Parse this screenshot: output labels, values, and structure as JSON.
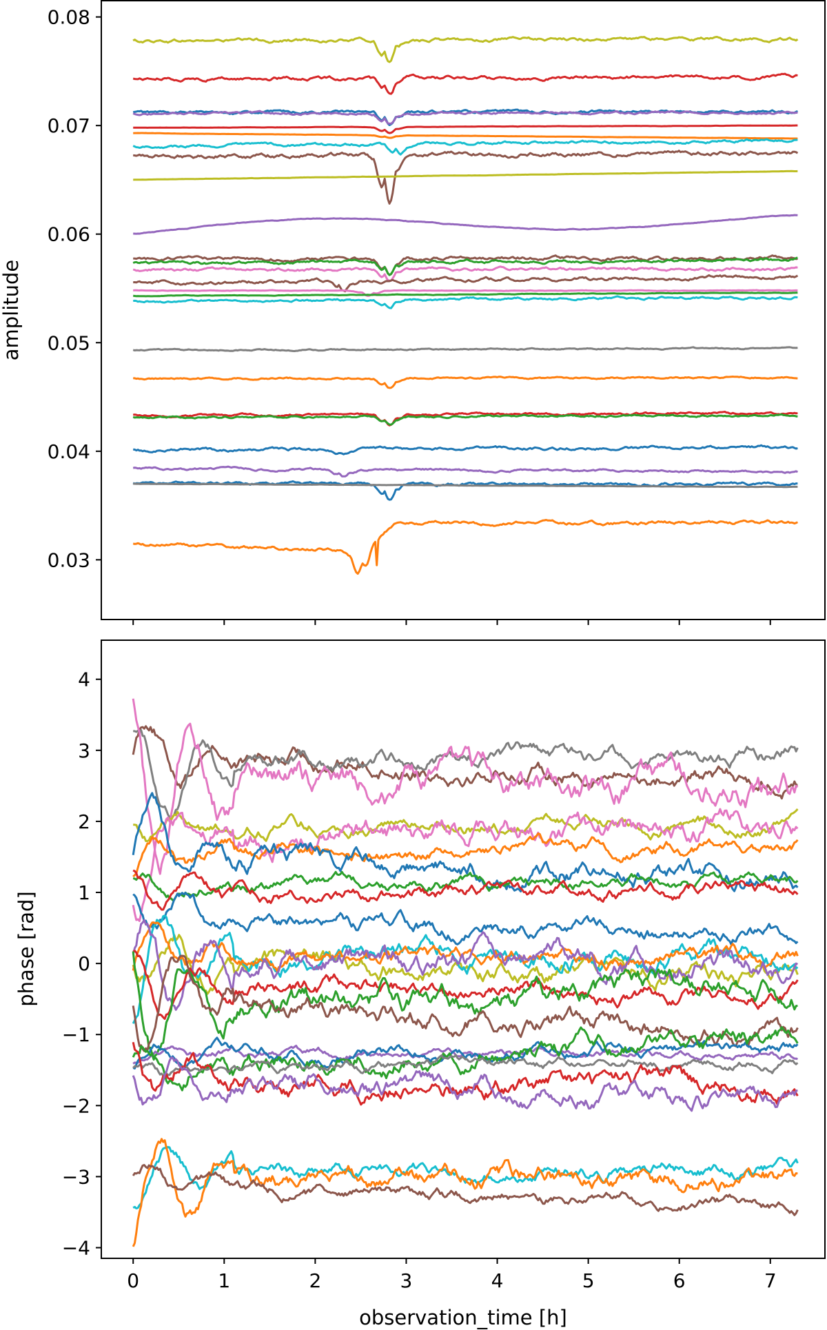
{
  "colors": [
    "#1f77b4",
    "#ff7f0e",
    "#2ca02c",
    "#d62728",
    "#9467bd",
    "#8c564b",
    "#e377c2",
    "#7f7f7f",
    "#bcbd22",
    "#17becf"
  ],
  "chart_data": [
    {
      "type": "line",
      "panel": "top",
      "title": "",
      "xlabel": "",
      "ylabel": "amplitude",
      "xlim": [
        -0.35,
        7.6
      ],
      "ylim": [
        0.0245,
        0.0815
      ],
      "xticks": [
        0,
        1,
        2,
        3,
        4,
        5,
        6,
        7
      ],
      "xtick_labels": [],
      "yticks": [
        0.03,
        0.04,
        0.05,
        0.06,
        0.07,
        0.08
      ],
      "ytick_labels": [
        "0.03",
        "0.04",
        "0.05",
        "0.06",
        "0.07",
        "0.08"
      ],
      "grid": false,
      "x_range": [
        0,
        7.3
      ],
      "series": [
        {
          "color": "#bcbd22",
          "base": 0.0778,
          "end": 0.078,
          "noise": 0.00012,
          "dip": 0.0018,
          "dip_center": 2.8
        },
        {
          "color": "#d62728",
          "base": 0.0743,
          "end": 0.0745,
          "noise": 0.00012,
          "dip": 0.0014,
          "dip_center": 2.8
        },
        {
          "color": "#1f77b4",
          "base": 0.0712,
          "end": 0.0713,
          "noise": 0.0001,
          "dip": 0.001,
          "dip_center": 2.8
        },
        {
          "color": "#9467bd",
          "base": 0.0711,
          "end": 0.0712,
          "noise": 8e-05,
          "dip": 0.0008,
          "dip_center": 2.8
        },
        {
          "color": "#d62728",
          "base": 0.0698,
          "end": 0.07,
          "noise": 1e-05,
          "dip": 0.0005,
          "dip_center": 2.8
        },
        {
          "color": "#ff7f0e",
          "base": 0.0693,
          "end": 0.0688,
          "noise": 1e-05,
          "dip": 0.0002,
          "dip_center": 2.8
        },
        {
          "color": "#17becf",
          "base": 0.0681,
          "end": 0.0686,
          "noise": 0.0001,
          "dip": 0.0009,
          "dip_center": 2.9
        },
        {
          "color": "#8c564b",
          "base": 0.0672,
          "end": 0.0675,
          "noise": 0.00015,
          "dip": 0.004,
          "dip_center": 2.8
        },
        {
          "color": "#bcbd22",
          "base": 0.065,
          "end": 0.0658,
          "noise": 1e-05,
          "dip": 0,
          "dip_center": 2.8
        },
        {
          "color": "#9467bd",
          "base": 0.0605,
          "end": 0.0613,
          "noise": 3e-05,
          "dip": 0,
          "dip_center": 2.8,
          "wave": 0.0013
        },
        {
          "color": "#8c564b",
          "base": 0.0577,
          "end": 0.0578,
          "noise": 0.00012,
          "dip": 0.0012,
          "dip_center": 2.8
        },
        {
          "color": "#2ca02c",
          "base": 0.0573,
          "end": 0.0576,
          "noise": 0.0001,
          "dip": 0.001,
          "dip_center": 2.8
        },
        {
          "color": "#e377c2",
          "base": 0.0567,
          "end": 0.0568,
          "noise": 0.0001,
          "dip": 0.0009,
          "dip_center": 2.8
        },
        {
          "color": "#8c564b",
          "base": 0.0555,
          "end": 0.0561,
          "noise": 0.00012,
          "dip": 0.0008,
          "dip_center": 2.3
        },
        {
          "color": "#e377c2",
          "base": 0.0548,
          "end": 0.0548,
          "noise": 2e-05,
          "dip": 0.0004,
          "dip_center": 2.6
        },
        {
          "color": "#2ca02c",
          "base": 0.0543,
          "end": 0.0546,
          "noise": 2e-05,
          "dip": 0,
          "dip_center": 2.8
        },
        {
          "color": "#17becf",
          "base": 0.0538,
          "end": 0.0542,
          "noise": 8e-05,
          "dip": 0.0007,
          "dip_center": 2.8
        },
        {
          "color": "#7f7f7f",
          "base": 0.0493,
          "end": 0.0495,
          "noise": 5e-05,
          "dip": 0,
          "dip_center": 2.8
        },
        {
          "color": "#ff7f0e",
          "base": 0.0467,
          "end": 0.0468,
          "noise": 6e-05,
          "dip": 0.0007,
          "dip_center": 2.8
        },
        {
          "color": "#d62728",
          "base": 0.0433,
          "end": 0.0435,
          "noise": 8e-05,
          "dip": 0.0008,
          "dip_center": 2.8
        },
        {
          "color": "#2ca02c",
          "base": 0.0431,
          "end": 0.0433,
          "noise": 7e-05,
          "dip": 0.0005,
          "dip_center": 2.8
        },
        {
          "color": "#1f77b4",
          "base": 0.0401,
          "end": 0.0404,
          "noise": 0.0001,
          "dip": 0.0004,
          "dip_center": 2.3
        },
        {
          "color": "#9467bd",
          "base": 0.0384,
          "end": 0.0381,
          "noise": 8e-05,
          "dip": 0.0005,
          "dip_center": 2.3
        },
        {
          "color": "#1f77b4",
          "base": 0.037,
          "end": 0.037,
          "noise": 0.0001,
          "dip": 0.0014,
          "dip_center": 2.8
        },
        {
          "color": "#7f7f7f",
          "base": 0.037,
          "end": 0.0367,
          "noise": 1e-05,
          "dip": 0,
          "dip_center": 2.8
        },
        {
          "color": "#ff7f0e",
          "base": 0.0314,
          "end": 0.0334,
          "noise": 0.00012,
          "dip": 0.002,
          "dip_center": 2.5,
          "step": 2.9
        }
      ]
    },
    {
      "type": "line",
      "panel": "bottom",
      "title": "",
      "xlabel": "observation_time [h]",
      "ylabel": "phase [rad]",
      "xlim": [
        -0.35,
        7.6
      ],
      "ylim": [
        -4.15,
        4.55
      ],
      "xticks": [
        0,
        1,
        2,
        3,
        4,
        5,
        6,
        7
      ],
      "xtick_labels": [
        "0",
        "1",
        "2",
        "3",
        "4",
        "5",
        "6",
        "7"
      ],
      "yticks": [
        -4,
        -3,
        -2,
        -1,
        0,
        1,
        2,
        3,
        4
      ],
      "ytick_labels": [
        "−4",
        "−3",
        "−2",
        "−1",
        "0",
        "1",
        "2",
        "3",
        "4"
      ],
      "grid": false,
      "x_range": [
        0,
        7.3
      ],
      "series": [
        {
          "color": "#8c564b",
          "start": 3.0,
          "level": 2.9,
          "end": 2.55,
          "noise": 0.09,
          "early": 0.6
        },
        {
          "color": "#7f7f7f",
          "start": 2.65,
          "level": 2.85,
          "end": 2.95,
          "noise": 0.08,
          "early": 0.8
        },
        {
          "color": "#e377c2",
          "start": 2.55,
          "level": 2.55,
          "end": 2.45,
          "noise": 0.15,
          "early": 1.4
        },
        {
          "color": "#bcbd22",
          "start": 1.97,
          "level": 1.95,
          "end": 1.95,
          "noise": 0.07,
          "early": 0.2
        },
        {
          "color": "#e377c2",
          "start": 1.5,
          "level": 1.8,
          "end": 1.95,
          "noise": 0.12,
          "early": 0.8
        },
        {
          "color": "#ff7f0e",
          "start": 1.55,
          "level": 1.55,
          "end": 1.65,
          "noise": 0.07,
          "early": 0.3
        },
        {
          "color": "#1f77b4",
          "start": 1.75,
          "level": 1.5,
          "end": 1.2,
          "noise": 0.1,
          "early": 0.6
        },
        {
          "color": "#2ca02c",
          "start": 1.1,
          "level": 1.1,
          "end": 1.2,
          "noise": 0.06,
          "early": 0.2
        },
        {
          "color": "#d62728",
          "start": 1.05,
          "level": 1.0,
          "end": 1.05,
          "noise": 0.07,
          "early": 0.3
        },
        {
          "color": "#1f77b4",
          "start": 0.85,
          "level": 0.6,
          "end": 0.35,
          "noise": 0.08,
          "early": 0.4
        },
        {
          "color": "#bcbd22",
          "start": 0.3,
          "level": 0.05,
          "end": -0.15,
          "noise": 0.1,
          "early": 0.5
        },
        {
          "color": "#17becf",
          "start": 0.1,
          "level": 0.1,
          "end": 0.05,
          "noise": 0.1,
          "early": 0.9
        },
        {
          "color": "#ff7f0e",
          "start": 0.15,
          "level": 0.05,
          "end": 0.1,
          "noise": 0.08,
          "early": 0.4
        },
        {
          "color": "#9467bd",
          "start": -0.2,
          "level": 0.05,
          "end": -0.1,
          "noise": 0.12,
          "early": 0.9
        },
        {
          "color": "#d62728",
          "start": -0.3,
          "level": -0.35,
          "end": -0.45,
          "noise": 0.08,
          "early": 0.5
        },
        {
          "color": "#2ca02c",
          "start": -0.5,
          "level": -0.6,
          "end": -0.35,
          "noise": 0.12,
          "early": 1.1
        },
        {
          "color": "#8c564b",
          "start": -0.3,
          "level": -0.55,
          "end": -1.0,
          "noise": 0.1,
          "early": 0.9
        },
        {
          "color": "#9467bd",
          "start": -1.3,
          "level": -1.25,
          "end": -1.3,
          "noise": 0.04,
          "early": 0.1
        },
        {
          "color": "#1f77b4",
          "start": -1.3,
          "level": -1.3,
          "end": -1.15,
          "noise": 0.06,
          "early": 0.2
        },
        {
          "color": "#2ca02c",
          "start": -1.35,
          "level": -1.4,
          "end": -1.1,
          "noise": 0.1,
          "early": 0.4
        },
        {
          "color": "#7f7f7f",
          "start": -1.55,
          "level": -1.5,
          "end": -1.35,
          "noise": 0.05,
          "early": 0.1
        },
        {
          "color": "#d62728",
          "start": -1.5,
          "level": -1.7,
          "end": -1.7,
          "noise": 0.1,
          "early": 0.5
        },
        {
          "color": "#9467bd",
          "start": -1.55,
          "level": -1.65,
          "end": -1.95,
          "noise": 0.1,
          "early": 0.4
        },
        {
          "color": "#17becf",
          "start": -3.0,
          "level": -2.95,
          "end": -2.9,
          "noise": 0.07,
          "early": 0.5
        },
        {
          "color": "#ff7f0e",
          "start": -3.15,
          "level": -3.05,
          "end": -3.05,
          "noise": 0.1,
          "early": 0.9
        },
        {
          "color": "#8c564b",
          "start": -2.95,
          "level": -3.2,
          "end": -3.4,
          "noise": 0.06,
          "early": 0.2
        }
      ]
    }
  ]
}
